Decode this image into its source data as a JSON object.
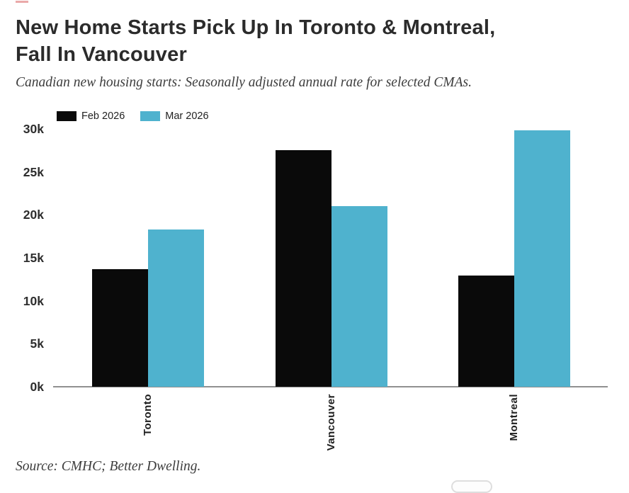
{
  "header": {
    "title_line1": "New Home Starts Pick Up In Toronto & Montreal,",
    "title_line2": "Fall In Vancouver",
    "subtitle": "Canadian new housing starts: Seasonally adjusted annual rate for selected CMAs."
  },
  "legend": [
    {
      "label": "Feb 2026",
      "color": "#0a0a0a"
    },
    {
      "label": "Mar 2026",
      "color": "#4FB2CE"
    }
  ],
  "chart_data": {
    "type": "bar",
    "title": "New Home Starts Pick Up In Toronto & Montreal, Fall In Vancouver",
    "subtitle": "Canadian new housing starts: Seasonally adjusted annual rate for selected CMAs.",
    "categories": [
      "Toronto",
      "Vancouver",
      "Montreal"
    ],
    "series": [
      {
        "name": "Feb 2026",
        "color": "#0a0a0a",
        "values": [
          13700,
          27500,
          12900
        ]
      },
      {
        "name": "Mar 2026",
        "color": "#4FB2CE",
        "values": [
          18300,
          21000,
          29800
        ]
      }
    ],
    "xlabel": "",
    "ylabel": "",
    "ylim": [
      0,
      30000
    ],
    "yticks": [
      "0k",
      "5k",
      "10k",
      "15k",
      "20k",
      "25k",
      "30k"
    ],
    "grid": false,
    "legend_position": "top-left"
  },
  "footer": {
    "source": "Source: CMHC; Better Dwelling."
  }
}
